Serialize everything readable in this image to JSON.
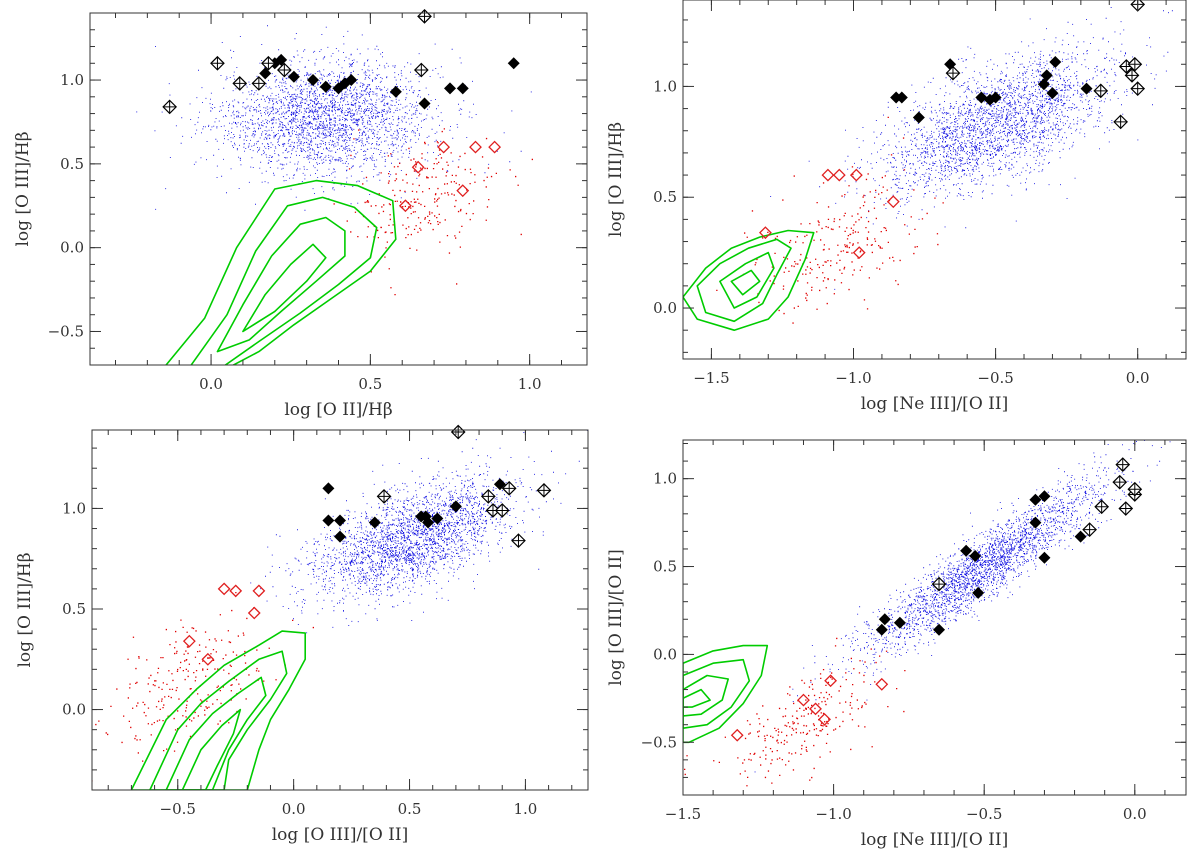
{
  "colors": {
    "frame": "#333333",
    "star_forming": "#0000e0",
    "agn": "#e00000",
    "contour": "#00cc00",
    "sample_filled": "#000000",
    "sample_open": "#000000",
    "sample_red": "#e02020"
  },
  "chart_data": [
    {
      "type": "scatter",
      "panel": "top-left",
      "xlabel": "log [O II]/Hβ",
      "ylabel": "log [O III]/Hβ",
      "xlim": [
        -0.38,
        1.18
      ],
      "ylim": [
        -0.7,
        1.4
      ],
      "xticks": [
        0.0,
        0.5,
        1.0
      ],
      "xtick_labels": [
        "0.0",
        "0.5",
        "1.0"
      ],
      "yticks": [
        -0.5,
        0.0,
        0.5,
        1.0
      ],
      "ytick_labels": [
        "−0.5",
        "0.0",
        "0.5",
        "1.0"
      ],
      "clouds": {
        "blue": {
          "cx": 0.36,
          "cy": 0.78,
          "sx": 0.17,
          "sy": 0.17,
          "rho": 0.05,
          "n": 2600
        },
        "red": {
          "cx": 0.66,
          "cy": 0.3,
          "sx": 0.12,
          "sy": 0.16,
          "rho": 0.2,
          "n": 240
        }
      },
      "contours": [
        [
          [
            -0.15,
            -0.72
          ],
          [
            -0.02,
            -0.42
          ],
          [
            0.08,
            0.0
          ],
          [
            0.2,
            0.35
          ],
          [
            0.33,
            0.4
          ],
          [
            0.46,
            0.37
          ],
          [
            0.57,
            0.28
          ],
          [
            0.58,
            0.05
          ],
          [
            0.5,
            -0.14
          ],
          [
            0.38,
            -0.3
          ],
          [
            0.26,
            -0.46
          ],
          [
            0.15,
            -0.62
          ],
          [
            0.05,
            -0.72
          ]
        ],
        [
          [
            -0.07,
            -0.72
          ],
          [
            0.05,
            -0.4
          ],
          [
            0.14,
            -0.02
          ],
          [
            0.24,
            0.25
          ],
          [
            0.35,
            0.3
          ],
          [
            0.45,
            0.24
          ],
          [
            0.52,
            0.12
          ],
          [
            0.5,
            -0.06
          ],
          [
            0.4,
            -0.22
          ],
          [
            0.28,
            -0.39
          ],
          [
            0.15,
            -0.56
          ],
          [
            0.03,
            -0.72
          ]
        ],
        [
          [
            0.02,
            -0.62
          ],
          [
            0.1,
            -0.34
          ],
          [
            0.19,
            -0.05
          ],
          [
            0.28,
            0.14
          ],
          [
            0.36,
            0.18
          ],
          [
            0.42,
            0.1
          ],
          [
            0.42,
            -0.05
          ],
          [
            0.33,
            -0.2
          ],
          [
            0.22,
            -0.38
          ],
          [
            0.12,
            -0.55
          ]
        ],
        [
          [
            0.1,
            -0.5
          ],
          [
            0.17,
            -0.28
          ],
          [
            0.25,
            -0.1
          ],
          [
            0.32,
            0.02
          ],
          [
            0.36,
            -0.06
          ],
          [
            0.3,
            -0.2
          ],
          [
            0.2,
            -0.38
          ]
        ]
      ],
      "filled_diamonds": [
        [
          0.17,
          1.04
        ],
        [
          0.2,
          1.1
        ],
        [
          0.22,
          1.12
        ],
        [
          0.26,
          1.02
        ],
        [
          0.32,
          1.0
        ],
        [
          0.36,
          0.96
        ],
        [
          0.4,
          0.95
        ],
        [
          0.42,
          0.98
        ],
        [
          0.44,
          1.0
        ],
        [
          0.58,
          0.93
        ],
        [
          0.67,
          0.86
        ],
        [
          0.75,
          0.95
        ],
        [
          0.79,
          0.95
        ],
        [
          0.95,
          1.1
        ]
      ],
      "open_cross_diamonds": [
        [
          -0.13,
          0.84
        ],
        [
          0.02,
          1.1
        ],
        [
          0.09,
          0.98
        ],
        [
          0.15,
          0.98
        ],
        [
          0.18,
          1.1
        ],
        [
          0.23,
          1.06
        ],
        [
          0.66,
          1.06
        ],
        [
          0.67,
          1.38
        ]
      ],
      "red_diamonds": [
        [
          0.61,
          0.25
        ],
        [
          0.65,
          0.48
        ],
        [
          0.73,
          0.6
        ],
        [
          0.79,
          0.34
        ],
        [
          0.83,
          0.6
        ],
        [
          0.89,
          0.6
        ]
      ]
    },
    {
      "type": "scatter",
      "panel": "top-right",
      "xlabel": "log [Ne III]/[O II]",
      "ylabel": "log [O III]/Hβ",
      "xlim": [
        -1.6,
        0.17
      ],
      "ylim": [
        -0.23,
        1.39
      ],
      "xticks": [
        -1.5,
        -1.0,
        -0.5,
        0.0
      ],
      "xtick_labels": [
        "−1.5",
        "−1.0",
        "−0.5",
        "0.0"
      ],
      "yticks": [
        0.0,
        0.5,
        1.0
      ],
      "ytick_labels": [
        "0.0",
        "0.5",
        "1.0"
      ],
      "clouds": {
        "blue": {
          "cx": -0.5,
          "cy": 0.83,
          "sx": 0.2,
          "sy": 0.16,
          "rho": 0.6,
          "n": 2600
        },
        "red": {
          "cx": -1.05,
          "cy": 0.3,
          "sx": 0.15,
          "sy": 0.16,
          "rho": 0.5,
          "n": 240
        }
      },
      "contours": [
        [
          [
            -1.6,
            0.05
          ],
          [
            -1.52,
            0.18
          ],
          [
            -1.43,
            0.27
          ],
          [
            -1.33,
            0.32
          ],
          [
            -1.23,
            0.35
          ],
          [
            -1.14,
            0.34
          ],
          [
            -1.17,
            0.22
          ],
          [
            -1.23,
            0.05
          ],
          [
            -1.3,
            -0.05
          ],
          [
            -1.42,
            -0.1
          ],
          [
            -1.55,
            -0.05
          ]
        ],
        [
          [
            -1.55,
            0.1
          ],
          [
            -1.47,
            0.2
          ],
          [
            -1.37,
            0.27
          ],
          [
            -1.27,
            0.31
          ],
          [
            -1.22,
            0.27
          ],
          [
            -1.27,
            0.15
          ],
          [
            -1.32,
            0.02
          ],
          [
            -1.42,
            -0.06
          ],
          [
            -1.52,
            -0.02
          ]
        ],
        [
          [
            -1.47,
            0.12
          ],
          [
            -1.38,
            0.2
          ],
          [
            -1.3,
            0.25
          ],
          [
            -1.28,
            0.18
          ],
          [
            -1.34,
            0.05
          ],
          [
            -1.42,
            0.0
          ]
        ],
        [
          [
            -1.43,
            0.12
          ],
          [
            -1.36,
            0.17
          ],
          [
            -1.33,
            0.12
          ],
          [
            -1.39,
            0.06
          ]
        ]
      ],
      "filled_diamonds": [
        [
          -0.85,
          0.95
        ],
        [
          -0.83,
          0.95
        ],
        [
          -0.77,
          0.86
        ],
        [
          -0.66,
          1.1
        ],
        [
          -0.55,
          0.95
        ],
        [
          -0.52,
          0.94
        ],
        [
          -0.5,
          0.95
        ],
        [
          -0.33,
          1.01
        ],
        [
          -0.32,
          1.05
        ],
        [
          -0.3,
          0.97
        ],
        [
          -0.29,
          1.11
        ],
        [
          -0.18,
          0.99
        ]
      ],
      "open_cross_diamonds": [
        [
          -0.65,
          1.06
        ],
        [
          -0.13,
          0.98
        ],
        [
          -0.06,
          0.84
        ],
        [
          -0.04,
          1.09
        ],
        [
          -0.02,
          1.05
        ],
        [
          -0.01,
          1.1
        ],
        [
          0.0,
          0.99
        ],
        [
          0.0,
          1.37
        ]
      ],
      "red_diamonds": [
        [
          -1.31,
          0.34
        ],
        [
          -1.09,
          0.6
        ],
        [
          -1.05,
          0.6
        ],
        [
          -0.99,
          0.6
        ],
        [
          -0.98,
          0.25
        ],
        [
          -0.86,
          0.48
        ]
      ]
    },
    {
      "type": "scatter",
      "panel": "bottom-left",
      "xlabel": "log [O III]/[O II]",
      "ylabel": "log [O III]/Hβ",
      "xlim": [
        -0.87,
        1.27
      ],
      "ylim": [
        -0.4,
        1.39
      ],
      "xticks": [
        -0.5,
        0.0,
        0.5,
        1.0
      ],
      "xtick_labels": [
        "−0.5",
        "0.0",
        "0.5",
        "1.0"
      ],
      "yticks": [
        0.0,
        0.5,
        1.0
      ],
      "ytick_labels": [
        "0.0",
        "0.5",
        "1.0"
      ],
      "clouds": {
        "blue": {
          "cx": 0.5,
          "cy": 0.85,
          "sx": 0.22,
          "sy": 0.15,
          "rho": 0.6,
          "n": 2600
        },
        "red": {
          "cx": -0.45,
          "cy": 0.15,
          "sx": 0.18,
          "sy": 0.16,
          "rho": 0.5,
          "n": 240
        }
      },
      "contours": [
        [
          [
            -0.7,
            -0.4
          ],
          [
            -0.55,
            -0.05
          ],
          [
            -0.42,
            0.1
          ],
          [
            -0.3,
            0.22
          ],
          [
            -0.15,
            0.32
          ],
          [
            -0.05,
            0.39
          ],
          [
            0.05,
            0.38
          ],
          [
            0.05,
            0.25
          ],
          [
            -0.02,
            0.1
          ],
          [
            -0.1,
            -0.05
          ],
          [
            -0.15,
            -0.2
          ],
          [
            -0.2,
            -0.4
          ]
        ],
        [
          [
            -0.62,
            -0.4
          ],
          [
            -0.5,
            -0.1
          ],
          [
            -0.4,
            0.03
          ],
          [
            -0.28,
            0.14
          ],
          [
            -0.15,
            0.25
          ],
          [
            -0.05,
            0.29
          ],
          [
            -0.03,
            0.18
          ],
          [
            -0.1,
            0.05
          ],
          [
            -0.2,
            -0.1
          ],
          [
            -0.28,
            -0.25
          ],
          [
            -0.3,
            -0.4
          ]
        ],
        [
          [
            -0.55,
            -0.4
          ],
          [
            -0.45,
            -0.15
          ],
          [
            -0.35,
            -0.02
          ],
          [
            -0.24,
            0.08
          ],
          [
            -0.14,
            0.16
          ],
          [
            -0.12,
            0.07
          ],
          [
            -0.2,
            -0.05
          ],
          [
            -0.28,
            -0.2
          ],
          [
            -0.35,
            -0.4
          ]
        ],
        [
          [
            -0.48,
            -0.4
          ],
          [
            -0.4,
            -0.2
          ],
          [
            -0.31,
            -0.08
          ],
          [
            -0.23,
            0.0
          ],
          [
            -0.26,
            -0.12
          ],
          [
            -0.33,
            -0.28
          ],
          [
            -0.38,
            -0.4
          ]
        ]
      ],
      "filled_diamonds": [
        [
          0.15,
          1.1
        ],
        [
          0.15,
          0.94
        ],
        [
          0.2,
          0.94
        ],
        [
          0.2,
          0.86
        ],
        [
          0.35,
          0.93
        ],
        [
          0.55,
          0.96
        ],
        [
          0.57,
          0.96
        ],
        [
          0.58,
          0.93
        ],
        [
          0.62,
          0.95
        ],
        [
          0.7,
          1.01
        ],
        [
          0.89,
          1.12
        ]
      ],
      "open_cross_diamonds": [
        [
          0.39,
          1.06
        ],
        [
          0.71,
          1.38
        ],
        [
          0.84,
          1.06
        ],
        [
          0.86,
          0.99
        ],
        [
          0.9,
          0.99
        ],
        [
          0.93,
          1.1
        ],
        [
          0.97,
          0.84
        ],
        [
          1.08,
          1.09
        ]
      ],
      "red_diamonds": [
        [
          -0.45,
          0.34
        ],
        [
          -0.37,
          0.25
        ],
        [
          -0.3,
          0.6
        ],
        [
          -0.25,
          0.59
        ],
        [
          -0.17,
          0.48
        ],
        [
          -0.15,
          0.59
        ]
      ]
    },
    {
      "type": "scatter",
      "panel": "bottom-right",
      "xlabel": "log [Ne III]/[O II]",
      "ylabel": "log [O III]/[O II]",
      "xlim": [
        -1.5,
        0.17
      ],
      "ylim": [
        -0.8,
        1.22
      ],
      "xticks": [
        -1.5,
        -1.0,
        -0.5,
        0.0
      ],
      "xtick_labels": [
        "−1.5",
        "−1.0",
        "−0.5",
        "0.0"
      ],
      "yticks": [
        -0.5,
        0.0,
        0.5,
        1.0
      ],
      "ytick_labels": [
        "−0.5",
        "0.0",
        "0.5",
        "1.0"
      ],
      "clouds": {
        "blue": {
          "cx": -0.5,
          "cy": 0.5,
          "sx": 0.2,
          "sy": 0.25,
          "rho": 0.92,
          "n": 2600
        },
        "red": {
          "cx": -1.1,
          "cy": -0.38,
          "sx": 0.13,
          "sy": 0.17,
          "rho": 0.6,
          "n": 240
        }
      },
      "contours": [
        [
          [
            -1.5,
            -0.05
          ],
          [
            -1.4,
            0.02
          ],
          [
            -1.3,
            0.05
          ],
          [
            -1.22,
            0.05
          ],
          [
            -1.24,
            -0.12
          ],
          [
            -1.3,
            -0.28
          ],
          [
            -1.38,
            -0.42
          ],
          [
            -1.48,
            -0.5
          ],
          [
            -1.5,
            -0.5
          ]
        ],
        [
          [
            -1.5,
            -0.12
          ],
          [
            -1.4,
            -0.05
          ],
          [
            -1.3,
            -0.03
          ],
          [
            -1.28,
            -0.15
          ],
          [
            -1.34,
            -0.3
          ],
          [
            -1.42,
            -0.4
          ],
          [
            -1.5,
            -0.42
          ]
        ],
        [
          [
            -1.5,
            -0.2
          ],
          [
            -1.42,
            -0.12
          ],
          [
            -1.35,
            -0.14
          ],
          [
            -1.37,
            -0.26
          ],
          [
            -1.44,
            -0.34
          ],
          [
            -1.5,
            -0.35
          ]
        ],
        [
          [
            -1.5,
            -0.25
          ],
          [
            -1.44,
            -0.2
          ],
          [
            -1.41,
            -0.26
          ],
          [
            -1.47,
            -0.3
          ],
          [
            -1.5,
            -0.3
          ]
        ]
      ],
      "filled_diamonds": [
        [
          -0.84,
          0.14
        ],
        [
          -0.83,
          0.2
        ],
        [
          -0.78,
          0.18
        ],
        [
          -0.65,
          0.14
        ],
        [
          -0.56,
          0.59
        ],
        [
          -0.53,
          0.56
        ],
        [
          -0.52,
          0.35
        ],
        [
          -0.33,
          0.75
        ],
        [
          -0.33,
          0.88
        ],
        [
          -0.3,
          0.9
        ],
        [
          -0.3,
          0.55
        ],
        [
          -0.18,
          0.67
        ]
      ],
      "open_cross_diamonds": [
        [
          -0.65,
          0.4
        ],
        [
          -0.15,
          0.71
        ],
        [
          -0.11,
          0.84
        ],
        [
          -0.05,
          0.98
        ],
        [
          -0.04,
          1.08
        ],
        [
          -0.03,
          0.83
        ],
        [
          0.0,
          0.91
        ],
        [
          0.0,
          0.94
        ]
      ],
      "red_diamonds": [
        [
          -1.32,
          -0.46
        ],
        [
          -1.1,
          -0.26
        ],
        [
          -1.06,
          -0.31
        ],
        [
          -1.03,
          -0.37
        ],
        [
          -1.01,
          -0.15
        ],
        [
          -0.84,
          -0.17
        ]
      ]
    }
  ]
}
